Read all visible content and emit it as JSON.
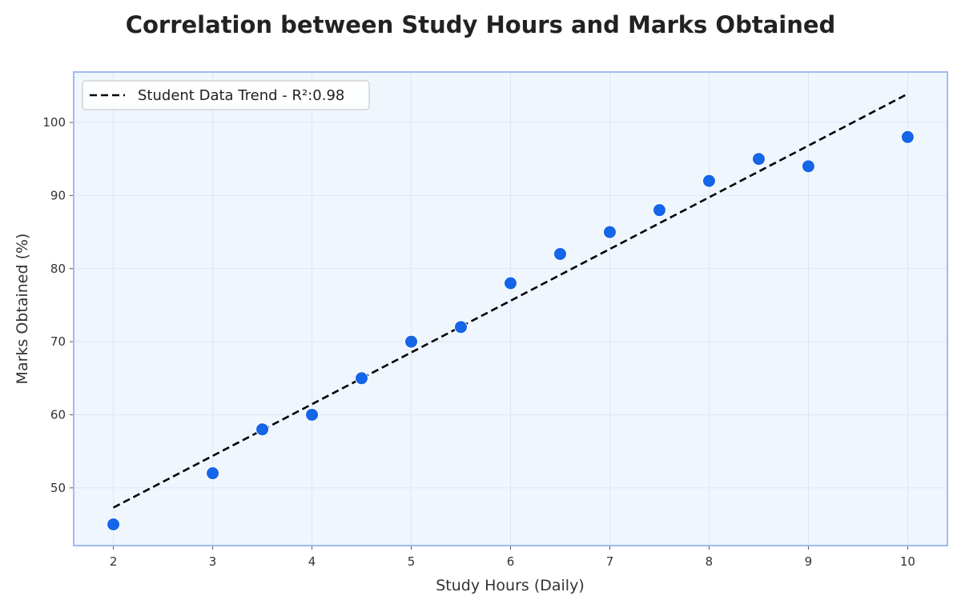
{
  "chart_data": {
    "type": "scatter",
    "title": "Correlation between Study Hours and Marks Obtained",
    "xlabel": "Study Hours (Daily)",
    "ylabel": "Marks Obtained (%)",
    "xlim": [
      1.6,
      10.4
    ],
    "ylim": [
      42.1,
      106.9
    ],
    "xticks": [
      2,
      3,
      4,
      5,
      6,
      7,
      8,
      9,
      10
    ],
    "yticks": [
      50,
      60,
      70,
      80,
      90,
      100
    ],
    "grid": true,
    "legend_position": "top-left",
    "series": [
      {
        "type": "scatter",
        "color": "#1565e8",
        "x": [
          2,
          3,
          3.5,
          4,
          4.5,
          5,
          5.5,
          6,
          6.5,
          7,
          7.5,
          8,
          8.5,
          9,
          10
        ],
        "y": [
          45,
          52,
          58,
          60,
          65,
          70,
          72,
          78,
          82,
          85,
          88,
          92,
          95,
          94,
          98
        ]
      },
      {
        "type": "line",
        "name": "Student Data Trend - R²:0.98",
        "style": "dashed",
        "color": "#000000",
        "x": [
          2,
          10
        ],
        "y": [
          47.3,
          103.9
        ]
      }
    ],
    "colors": {
      "plot_background": "#f0f6fe",
      "frame": "#9dbcf0",
      "grid": "#dde6f7"
    }
  }
}
